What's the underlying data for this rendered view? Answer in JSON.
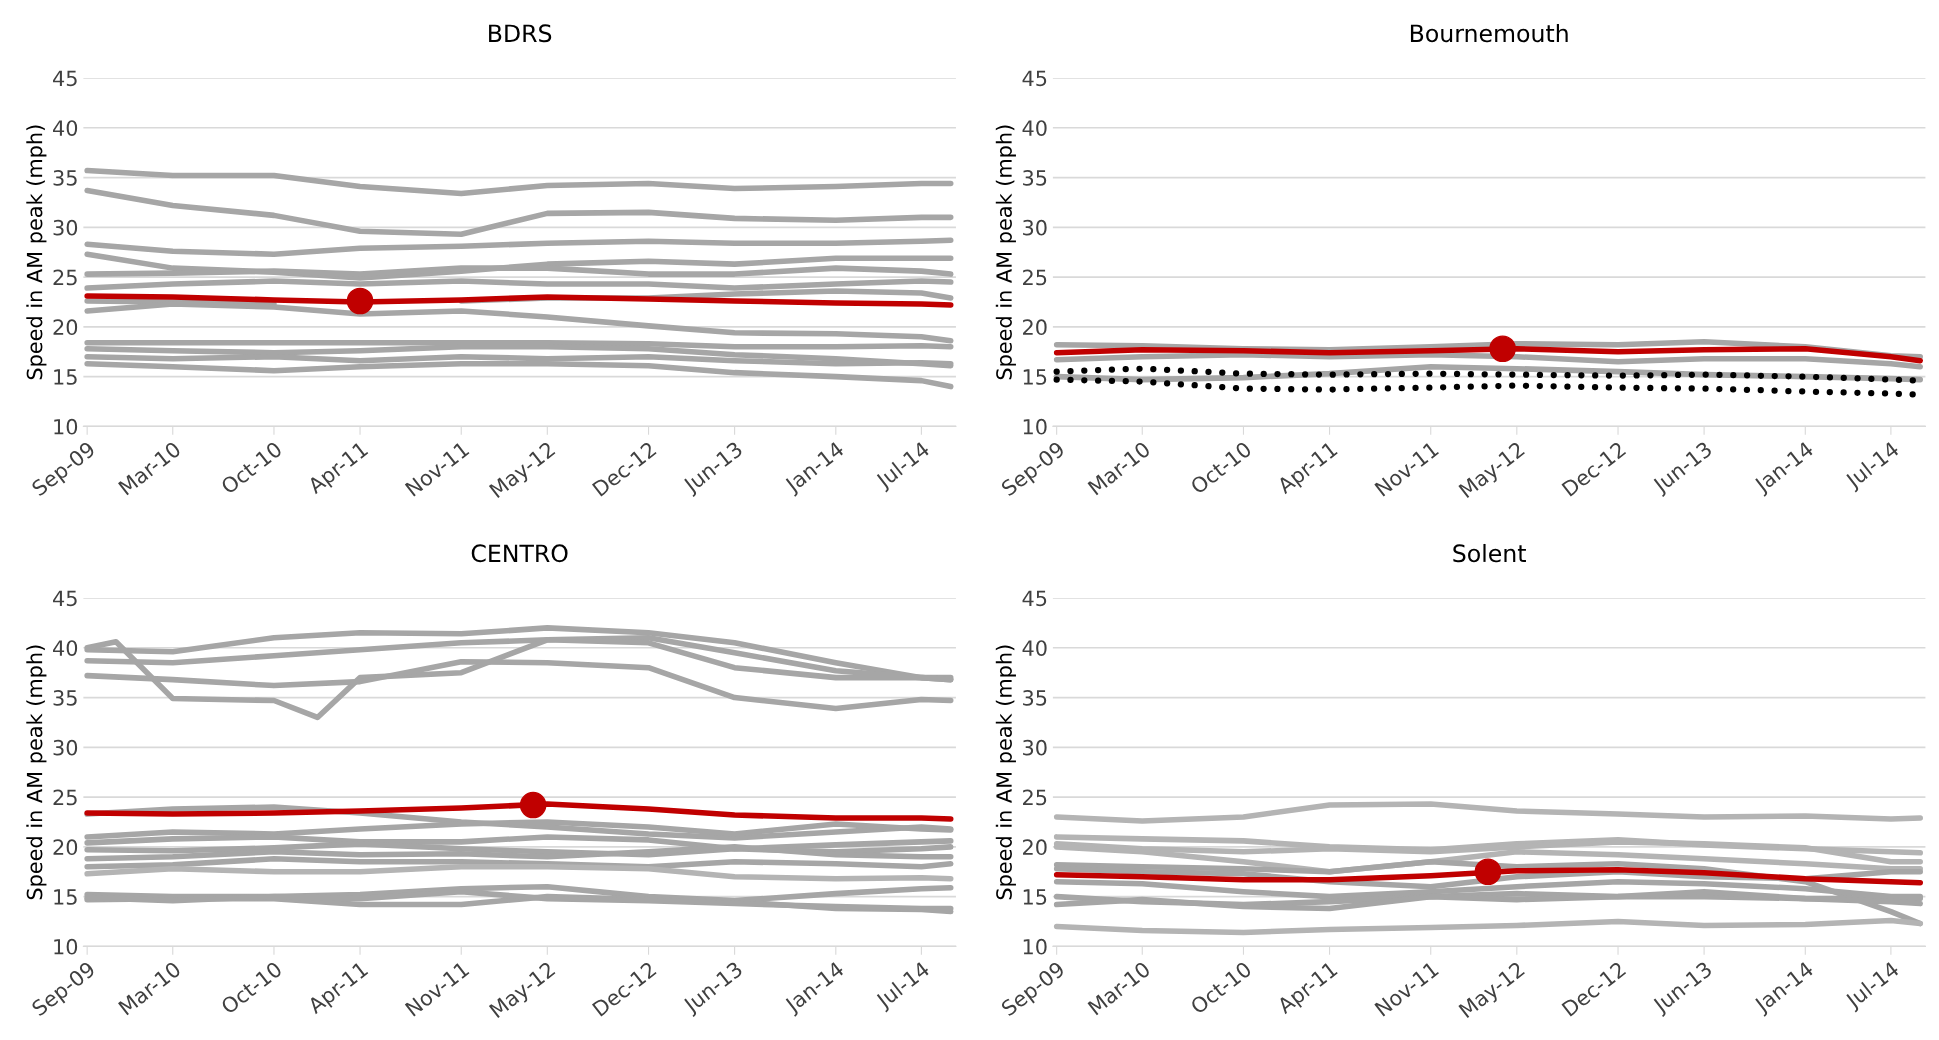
{
  "chart_data": [
    {
      "type": "line",
      "title": "BDRS",
      "ylabel": "Speed in AM peak (mph)",
      "grid": "y",
      "ylim": [
        10,
        45
      ],
      "yticks": [
        10,
        15,
        20,
        25,
        30,
        35,
        40,
        45
      ],
      "xlim": [
        "2009-08-24",
        "2014-09-12"
      ],
      "xticks": [
        {
          "value": "2009-09",
          "label": "Sep-09"
        },
        {
          "value": "2010-03",
          "label": "Mar-10"
        },
        {
          "value": "2010-10",
          "label": "Oct-10"
        },
        {
          "value": "2011-04",
          "label": "Apr-11"
        },
        {
          "value": "2011-11",
          "label": "Nov-11"
        },
        {
          "value": "2012-05",
          "label": "May-12"
        },
        {
          "value": "2012-12",
          "label": "Dec-12"
        },
        {
          "value": "2013-06",
          "label": "Jun-13"
        },
        {
          "value": "2014-01",
          "label": "Jan-14"
        },
        {
          "value": "2014-07",
          "label": "Jul-14"
        }
      ],
      "x": [
        "2009-09",
        "2010-03",
        "2010-10",
        "2011-04",
        "2011-11",
        "2012-05",
        "2012-12",
        "2013-06",
        "2014-01",
        "2014-07",
        "2014-09"
      ],
      "series": [
        {
          "color": "#a6a6a6",
          "values": [
            35.7,
            35.2,
            35.2,
            34.1,
            33.4,
            34.2,
            34.4,
            33.9,
            34.1,
            34.4,
            34.4
          ]
        },
        {
          "color": "#a6a6a6",
          "values": [
            33.7,
            32.2,
            31.2,
            29.6,
            29.3,
            31.4,
            31.5,
            30.9,
            30.7,
            31.0,
            31.0
          ]
        },
        {
          "color": "#a6a6a6",
          "values": [
            28.3,
            27.6,
            27.3,
            27.9,
            28.1,
            28.4,
            28.6,
            28.4,
            28.4,
            28.6,
            28.7
          ]
        },
        {
          "color": "#a6a6a6",
          "values": [
            27.3,
            25.9,
            25.5,
            24.9,
            25.6,
            26.3,
            26.6,
            26.3,
            26.9,
            26.9,
            26.9
          ]
        },
        {
          "color": "#a6a6a6",
          "values": [
            25.3,
            25.4,
            25.6,
            25.3,
            25.9,
            25.9,
            25.3,
            25.3,
            25.9,
            25.6,
            25.3
          ]
        },
        {
          "color": "#a6a6a6",
          "values": [
            23.9,
            24.3,
            24.6,
            24.3,
            24.6,
            24.3,
            24.3,
            23.9,
            24.3,
            24.6,
            24.5
          ]
        },
        {
          "color": "#a6a6a6",
          "values": [
            22.6,
            22.5,
            22.3,
            null,
            22.6,
            22.9,
            22.9,
            23.3,
            23.6,
            23.4,
            22.9
          ]
        },
        {
          "color": "#a6a6a6",
          "values": [
            21.6,
            22.3,
            22.0,
            21.3,
            21.6,
            21.0,
            20.1,
            19.4,
            19.3,
            19.0,
            18.6
          ]
        },
        {
          "color": "#a6a6a6",
          "values": [
            18.4,
            18.4,
            18.4,
            18.4,
            18.4,
            18.4,
            18.3,
            18.0,
            18.0,
            18.1,
            18.0
          ]
        },
        {
          "color": "#a6a6a6",
          "values": [
            17.8,
            17.6,
            17.4,
            17.6,
            18.0,
            18.0,
            17.8,
            17.2,
            16.8,
            16.3,
            16.1
          ]
        },
        {
          "color": "#a6a6a6",
          "values": [
            17.0,
            16.8,
            17.0,
            16.6,
            17.0,
            16.8,
            17.0,
            16.6,
            16.3,
            16.4,
            16.3
          ]
        },
        {
          "color": "#a6a6a6",
          "values": [
            16.3,
            16.0,
            15.6,
            16.0,
            16.3,
            16.3,
            16.1,
            15.4,
            15.0,
            14.6,
            14.0
          ]
        },
        {
          "color": "#c00000",
          "values": [
            23.1,
            23.0,
            22.7,
            22.5,
            22.7,
            23.0,
            22.8,
            22.6,
            22.4,
            22.3,
            22.2
          ]
        },
        {
          "type": "scatter",
          "marker": "circle",
          "color": "#c00000",
          "x": [
            "2011-04"
          ],
          "values": [
            22.6
          ]
        }
      ]
    },
    {
      "type": "line",
      "title": "Bournemouth",
      "ylabel": "Speed in AM peak (mph)",
      "grid": "y",
      "ylim": [
        10,
        45
      ],
      "yticks": [
        10,
        15,
        20,
        25,
        30,
        35,
        40,
        45
      ],
      "xlim": [
        "2009-08-24",
        "2014-09-12"
      ],
      "xticks": [
        {
          "value": "2009-09",
          "label": "Sep-09"
        },
        {
          "value": "2010-03",
          "label": "Mar-10"
        },
        {
          "value": "2010-10",
          "label": "Oct-10"
        },
        {
          "value": "2011-04",
          "label": "Apr-11"
        },
        {
          "value": "2011-11",
          "label": "Nov-11"
        },
        {
          "value": "2012-05",
          "label": "May-12"
        },
        {
          "value": "2012-12",
          "label": "Dec-12"
        },
        {
          "value": "2013-06",
          "label": "Jun-13"
        },
        {
          "value": "2014-01",
          "label": "Jan-14"
        },
        {
          "value": "2014-07",
          "label": "Jul-14"
        }
      ],
      "x": [
        "2009-09",
        "2010-03",
        "2010-10",
        "2011-04",
        "2011-11",
        "2012-05",
        "2012-12",
        "2013-06",
        "2014-01",
        "2014-07",
        "2014-09"
      ],
      "series": [
        {
          "color": "#a6a6a6",
          "values": [
            18.2,
            18.1,
            17.8,
            17.7,
            18.0,
            18.3,
            18.2,
            18.5,
            18.0,
            17.1,
            17.0
          ]
        },
        {
          "color": "#a6a6a6",
          "values": [
            16.7,
            17.0,
            17.2,
            17.0,
            17.2,
            17.0,
            16.5,
            16.8,
            16.8,
            16.3,
            16.0
          ]
        },
        {
          "color": "#a6a6a6",
          "values": [
            15.0,
            14.7,
            14.9,
            15.3,
            16.0,
            15.8,
            15.5,
            15.2,
            15.0,
            14.8,
            14.7
          ]
        },
        {
          "color": "#000000",
          "line_style": "dotted",
          "values": [
            15.5,
            15.8,
            15.3,
            15.2,
            15.3,
            15.2,
            15.1,
            15.2,
            15.0,
            14.7,
            14.6
          ]
        },
        {
          "color": "#000000",
          "line_style": "dotted",
          "values": [
            14.7,
            14.5,
            13.8,
            13.7,
            13.9,
            14.1,
            13.9,
            13.8,
            13.5,
            13.3,
            13.2
          ]
        },
        {
          "color": "#c00000",
          "values": [
            17.4,
            17.7,
            17.6,
            17.4,
            17.6,
            17.8,
            17.5,
            17.7,
            17.8,
            17.0,
            16.6
          ]
        },
        {
          "type": "scatter",
          "marker": "circle",
          "color": "#c00000",
          "x": [
            "2012-04"
          ],
          "values": [
            17.8
          ]
        }
      ]
    },
    {
      "type": "line",
      "title": "CENTRO",
      "ylabel": "Speed in AM peak (mph)",
      "grid": "y",
      "ylim": [
        10,
        45
      ],
      "yticks": [
        10,
        15,
        20,
        25,
        30,
        35,
        40,
        45
      ],
      "xlim": [
        "2009-08-24",
        "2014-09-12"
      ],
      "xticks": [
        {
          "value": "2009-09",
          "label": "Sep-09"
        },
        {
          "value": "2010-03",
          "label": "Mar-10"
        },
        {
          "value": "2010-10",
          "label": "Oct-10"
        },
        {
          "value": "2011-04",
          "label": "Apr-11"
        },
        {
          "value": "2011-11",
          "label": "Nov-11"
        },
        {
          "value": "2012-05",
          "label": "May-12"
        },
        {
          "value": "2012-12",
          "label": "Dec-12"
        },
        {
          "value": "2013-06",
          "label": "Jun-13"
        },
        {
          "value": "2014-01",
          "label": "Jan-14"
        },
        {
          "value": "2014-07",
          "label": "Jul-14"
        }
      ],
      "x": [
        "2009-09",
        "2010-03",
        "2010-10",
        "2011-04",
        "2011-11",
        "2012-05",
        "2012-12",
        "2013-06",
        "2014-01",
        "2014-07",
        "2014-09"
      ],
      "series": [
        {
          "color": "#a6a6a6",
          "values": [
            39.8,
            39.6,
            41.0,
            41.5,
            41.4,
            42.0,
            41.5,
            40.5,
            38.5,
            37.0,
            37.0
          ]
        },
        {
          "color": "#a6a6a6",
          "values": [
            38.7,
            38.5,
            39.2,
            39.8,
            40.5,
            40.8,
            41.0,
            39.5,
            37.7,
            37.0,
            36.8
          ]
        },
        {
          "color": "#a6a6a6",
          "x": [
            "2009-09",
            "2009-11",
            "2010-03",
            "2010-10",
            "2011-01",
            "2011-04",
            "2011-11",
            "2012-05",
            "2012-12",
            "2013-06",
            "2014-01",
            "2014-07",
            "2014-09"
          ],
          "values": [
            40.0,
            40.6,
            34.9,
            34.7,
            33.0,
            37.0,
            37.5,
            40.8,
            40.5,
            38.0,
            37.0,
            37.0,
            36.8
          ]
        },
        {
          "color": "#a6a6a6",
          "values": [
            37.2,
            36.8,
            36.2,
            36.6,
            38.6,
            38.5,
            38.0,
            35.0,
            33.9,
            34.8,
            34.7
          ]
        },
        {
          "color": "#a6a6a6",
          "values": [
            23.3,
            23.8,
            24.0,
            23.4,
            22.5,
            22.0,
            21.3,
            20.9,
            21.5,
            22.0,
            21.8
          ]
        },
        {
          "color": "#a6a6a6",
          "values": [
            21.0,
            21.5,
            21.3,
            21.8,
            22.3,
            22.5,
            22.0,
            21.3,
            22.3,
            21.8,
            21.7
          ]
        },
        {
          "color": "#a6a6a6",
          "values": [
            20.4,
            20.8,
            21.0,
            20.5,
            20.5,
            21.0,
            20.7,
            19.8,
            20.2,
            20.5,
            20.6
          ]
        },
        {
          "color": "#a6a6a6",
          "values": [
            19.7,
            19.6,
            19.9,
            20.3,
            19.8,
            19.5,
            19.2,
            19.8,
            19.5,
            19.8,
            20.0
          ]
        },
        {
          "color": "#a6a6a6",
          "values": [
            18.8,
            19.0,
            19.5,
            19.2,
            19.3,
            19.0,
            19.5,
            20.0,
            19.2,
            19.0,
            19.0
          ]
        },
        {
          "color": "#a6a6a6",
          "values": [
            18.0,
            18.2,
            18.8,
            18.5,
            18.5,
            18.3,
            18.0,
            18.5,
            18.3,
            18.0,
            18.3
          ]
        },
        {
          "color": "#b4b4b4",
          "values": [
            17.3,
            17.8,
            17.5,
            17.5,
            18.0,
            18.0,
            17.8,
            17.0,
            16.8,
            16.9,
            16.8
          ]
        },
        {
          "color": "#a6a6a6",
          "values": [
            15.2,
            15.0,
            15.0,
            15.2,
            15.8,
            16.0,
            15.0,
            14.6,
            15.3,
            15.8,
            15.9
          ]
        },
        {
          "color": "#a6a6a6",
          "values": [
            14.7,
            14.8,
            14.8,
            14.2,
            14.2,
            15.0,
            14.7,
            14.5,
            13.8,
            13.7,
            13.5
          ]
        },
        {
          "color": "#a6a6a6",
          "values": [
            14.9,
            14.6,
            15.0,
            14.8,
            15.5,
            14.8,
            14.6,
            14.3,
            14.0,
            13.8,
            13.8
          ]
        },
        {
          "color": "#c00000",
          "values": [
            23.4,
            23.3,
            23.4,
            23.6,
            23.9,
            24.3,
            23.8,
            23.2,
            22.9,
            22.9,
            22.8
          ]
        },
        {
          "type": "scatter",
          "marker": "circle",
          "color": "#c00000",
          "x": [
            "2012-04"
          ],
          "values": [
            24.2
          ]
        }
      ]
    },
    {
      "type": "line",
      "title": "Solent",
      "ylabel": "Speed in AM peak (mph)",
      "grid": "y",
      "ylim": [
        10,
        45
      ],
      "yticks": [
        10,
        15,
        20,
        25,
        30,
        35,
        40,
        45
      ],
      "xlim": [
        "2009-08-24",
        "2014-09-12"
      ],
      "xticks": [
        {
          "value": "2009-09",
          "label": "Sep-09"
        },
        {
          "value": "2010-03",
          "label": "Mar-10"
        },
        {
          "value": "2010-10",
          "label": "Oct-10"
        },
        {
          "value": "2011-04",
          "label": "Apr-11"
        },
        {
          "value": "2011-11",
          "label": "Nov-11"
        },
        {
          "value": "2012-05",
          "label": "May-12"
        },
        {
          "value": "2012-12",
          "label": "Dec-12"
        },
        {
          "value": "2013-06",
          "label": "Jun-13"
        },
        {
          "value": "2014-01",
          "label": "Jan-14"
        },
        {
          "value": "2014-07",
          "label": "Jul-14"
        }
      ],
      "x": [
        "2009-09",
        "2010-03",
        "2010-10",
        "2011-04",
        "2011-11",
        "2012-05",
        "2012-12",
        "2013-06",
        "2014-01",
        "2014-07",
        "2014-09"
      ],
      "series": [
        {
          "color": "#b4b4b4",
          "values": [
            23.0,
            22.6,
            23.0,
            24.2,
            24.3,
            23.6,
            23.3,
            23.0,
            23.1,
            22.8,
            22.9
          ]
        },
        {
          "color": "#b4b4b4",
          "values": [
            21.0,
            20.8,
            20.6,
            20.0,
            19.7,
            20.3,
            20.7,
            20.2,
            19.8,
            19.5,
            19.4
          ]
        },
        {
          "color": "#b4b4b4",
          "values": [
            20.3,
            19.8,
            19.5,
            19.8,
            19.5,
            20.0,
            20.5,
            20.3,
            19.9,
            18.5,
            18.5
          ]
        },
        {
          "color": "#b4b4b4",
          "values": [
            20.0,
            19.5,
            18.5,
            17.5,
            18.5,
            19.5,
            19.2,
            18.8,
            18.3,
            17.8,
            17.8
          ]
        },
        {
          "color": "#a6a6a6",
          "values": [
            18.2,
            18.0,
            17.8,
            17.5,
            18.5,
            18.0,
            18.3,
            17.8,
            16.5,
            13.5,
            12.3
          ]
        },
        {
          "color": "#a6a6a6",
          "values": [
            17.8,
            17.5,
            17.3,
            16.5,
            16.0,
            17.0,
            17.5,
            17.0,
            16.8,
            17.5,
            17.5
          ]
        },
        {
          "color": "#a6a6a6",
          "values": [
            16.5,
            16.3,
            15.5,
            15.0,
            15.5,
            16.0,
            16.5,
            16.3,
            15.8,
            15.0,
            15.0
          ]
        },
        {
          "color": "#a6a6a6",
          "values": [
            15.0,
            14.5,
            14.2,
            14.5,
            15.0,
            15.3,
            15.0,
            15.0,
            14.8,
            14.8,
            14.8
          ]
        },
        {
          "color": "#a6a6a6",
          "values": [
            14.2,
            14.7,
            14.0,
            13.8,
            15.0,
            14.7,
            15.0,
            15.5,
            14.8,
            14.5,
            14.3
          ]
        },
        {
          "color": "#b4b4b4",
          "values": [
            12.0,
            11.6,
            11.4,
            11.7,
            11.9,
            12.1,
            12.5,
            12.1,
            12.2,
            12.6,
            12.3
          ]
        },
        {
          "color": "#c00000",
          "values": [
            17.2,
            17.0,
            16.7,
            16.7,
            17.1,
            17.6,
            17.7,
            17.4,
            16.8,
            16.5,
            16.4
          ]
        },
        {
          "type": "scatter",
          "marker": "circle",
          "color": "#c00000",
          "x": [
            "2012-03"
          ],
          "values": [
            17.5
          ]
        }
      ]
    }
  ]
}
